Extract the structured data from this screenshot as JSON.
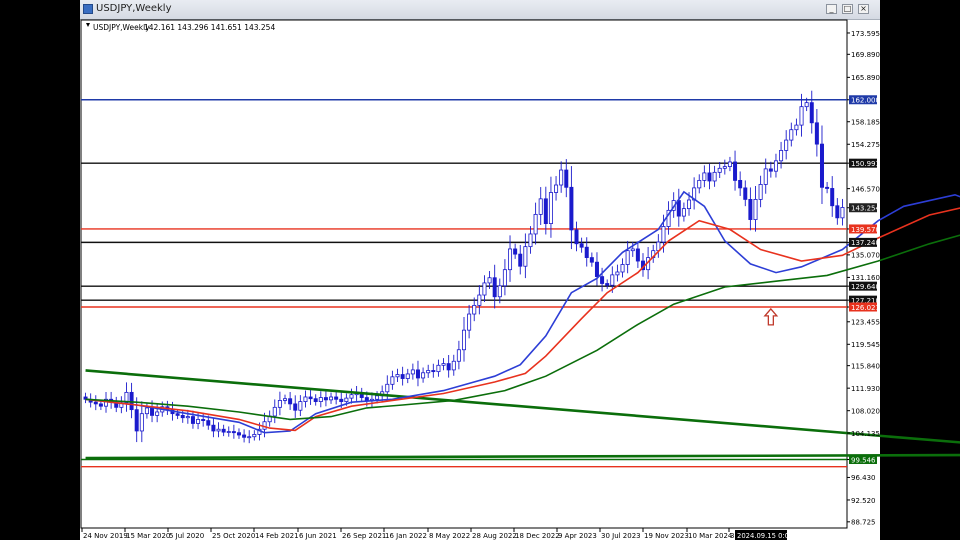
{
  "window": {
    "title": "USDJPY,Weekly",
    "buttons": [
      "_",
      "□",
      "×"
    ]
  },
  "chart_data": {
    "type": "candlestick",
    "symbol_label": "USDJPY,Weekly",
    "ohlc_label": "142.161 143.296 141.651 143.254",
    "y_ticks": [
      "173.595",
      "169.890",
      "165.890",
      "162.000",
      "158.185",
      "154.275",
      "150.991",
      "146.570",
      "143.254",
      "139.570",
      "137.240",
      "135.070",
      "131.160",
      "129.640",
      "127.210",
      "126.021",
      "123.455",
      "119.545",
      "115.840",
      "111.930",
      "108.020",
      "104.135",
      "99.546",
      "96.430",
      "92.520",
      "88.725"
    ],
    "x_ticks": [
      "24 Nov 2019",
      "15 Mar 2020",
      "5 Jul 2020",
      "25 Oct 2020",
      "14 Feb 2021",
      "6 Jun 2021",
      "26 Sep 2021",
      "16 Jan 2022",
      "8 May 2022",
      "28 Aug 2022",
      "18 Dec 2022",
      "9 Apr 2023",
      "30 Jul 2023",
      "19 Nov 2023",
      "10 Mar 2024",
      "3"
    ],
    "cursor_time": "2024.09.15 0:00",
    "y_range": [
      88.0,
      175.5
    ],
    "horizontal_levels": [
      {
        "value": 162.0,
        "label": "162.000",
        "color": "#1f3aa8"
      },
      {
        "value": 150.991,
        "label": "150.991",
        "color": "#111111"
      },
      {
        "value": 143.254,
        "label": "143.254",
        "color": "#222222"
      },
      {
        "value": 139.57,
        "label": "139.570",
        "color": "#e8321e"
      },
      {
        "value": 137.24,
        "label": "137.240",
        "color": "#111111"
      },
      {
        "value": 129.64,
        "label": "129.640",
        "color": "#111111"
      },
      {
        "value": 127.21,
        "label": "127.210",
        "color": "#111111"
      },
      {
        "value": 126.021,
        "label": "126.021",
        "color": "#e8321e"
      },
      {
        "value": 99.546,
        "label": "99.546",
        "color": "#0b6e0b"
      },
      {
        "value": 98.3,
        "label": "",
        "color": "#e8321e"
      }
    ],
    "series": [
      {
        "color": "#2d3ed6",
        "points": [
          [
            0,
            110.0
          ],
          [
            10,
            109.0
          ],
          [
            20,
            107.5
          ],
          [
            30,
            106.0
          ],
          [
            35,
            104.2
          ],
          [
            40,
            104.5
          ],
          [
            45,
            107.5
          ],
          [
            52,
            109.5
          ],
          [
            60,
            110.0
          ],
          [
            70,
            111.5
          ],
          [
            80,
            114.0
          ],
          [
            85,
            116.0
          ],
          [
            90,
            121.0
          ],
          [
            95,
            128.5
          ],
          [
            100,
            131.0
          ],
          [
            105,
            135.5
          ],
          [
            112,
            139.5
          ],
          [
            117,
            146.0
          ],
          [
            121,
            143.5
          ],
          [
            125,
            137.5
          ],
          [
            130,
            133.5
          ],
          [
            135,
            132.0
          ],
          [
            140,
            133.0
          ],
          [
            148,
            136.0
          ],
          [
            155,
            141.0
          ],
          [
            160,
            143.5
          ],
          [
            170,
            145.5
          ],
          [
            176,
            143.5
          ],
          [
            180,
            145.5
          ],
          [
            185,
            147.0
          ],
          [
            190,
            147.5
          ],
          [
            195,
            150.0
          ],
          [
            200,
            150.5
          ],
          [
            205,
            152.5
          ],
          [
            210,
            156.5
          ],
          [
            214,
            157.5
          ],
          [
            220,
            153.0
          ],
          [
            226,
            146.5
          ],
          [
            229,
            145.0
          ]
        ]
      },
      {
        "color": "#e8321e",
        "points": [
          [
            0,
            110.0
          ],
          [
            10,
            109.0
          ],
          [
            20,
            108.0
          ],
          [
            30,
            106.5
          ],
          [
            36,
            105.0
          ],
          [
            41,
            104.6
          ],
          [
            45,
            107.0
          ],
          [
            52,
            108.8
          ],
          [
            60,
            109.8
          ],
          [
            70,
            111.0
          ],
          [
            80,
            113.0
          ],
          [
            86,
            114.5
          ],
          [
            90,
            117.5
          ],
          [
            97,
            124.0
          ],
          [
            102,
            128.5
          ],
          [
            108,
            132.0
          ],
          [
            114,
            137.5
          ],
          [
            120,
            141.0
          ],
          [
            126,
            139.5
          ],
          [
            132,
            136.0
          ],
          [
            140,
            134.0
          ],
          [
            148,
            135.0
          ],
          [
            155,
            138.0
          ],
          [
            165,
            142.0
          ],
          [
            175,
            144.0
          ],
          [
            185,
            145.5
          ],
          [
            195,
            148.0
          ],
          [
            205,
            150.5
          ],
          [
            210,
            152.5
          ],
          [
            215,
            155.0
          ],
          [
            220,
            153.5
          ],
          [
            229,
            148.5
          ]
        ]
      },
      {
        "color": "#0b6e0b",
        "points": [
          [
            0,
            110.0
          ],
          [
            10,
            109.5
          ],
          [
            20,
            108.8
          ],
          [
            30,
            107.8
          ],
          [
            40,
            106.5
          ],
          [
            48,
            107.0
          ],
          [
            55,
            108.5
          ],
          [
            62,
            109.0
          ],
          [
            72,
            109.8
          ],
          [
            82,
            111.5
          ],
          [
            90,
            114.0
          ],
          [
            100,
            118.5
          ],
          [
            108,
            123.0
          ],
          [
            115,
            126.5
          ],
          [
            125,
            129.5
          ],
          [
            135,
            130.5
          ],
          [
            145,
            131.5
          ],
          [
            155,
            134.0
          ],
          [
            165,
            137.0
          ],
          [
            175,
            139.5
          ],
          [
            185,
            141.0
          ],
          [
            195,
            143.0
          ],
          [
            205,
            144.5
          ],
          [
            212,
            146.5
          ],
          [
            216,
            147.3
          ],
          [
            220,
            147.0
          ],
          [
            226,
            145.8
          ],
          [
            229,
            145.2
          ]
        ]
      }
    ],
    "trendlines": [
      {
        "color": "#0b6e0b",
        "from": [
          0,
          115.0
        ],
        "to": [
          200,
          100.4
        ]
      },
      {
        "color": "#0b6e0b",
        "from": [
          0,
          99.8
        ],
        "to": [
          200,
          100.4
        ]
      }
    ],
    "annotations": [
      {
        "kind": "arrow-up",
        "x": 134,
        "value": 124.3,
        "color": "#c0392b"
      },
      {
        "kind": "circle",
        "x": 220,
        "value": 151.8,
        "color": "#f2e52a"
      },
      {
        "kind": "vline",
        "x": 219,
        "color": "#111111"
      }
    ],
    "closes": [
      110,
      109.5,
      109.2,
      108.8,
      110,
      109.5,
      108.6,
      109.4,
      111.2,
      108.2,
      104.5,
      107.5,
      108.5,
      107.2,
      107.8,
      108.7,
      108.2,
      107.5,
      107.2,
      106.8,
      107.0,
      105.8,
      106.5,
      106.3,
      105.5,
      104.5,
      104.8,
      104.3,
      104.4,
      104.2,
      103.8,
      103.4,
      103.5,
      103.9,
      104.8,
      106.1,
      107.1,
      108.6,
      109.8,
      110.1,
      109.2,
      108.1,
      109.6,
      110.4,
      110.1,
      109.6,
      110.3,
      109.9,
      110.4,
      110.0,
      109.6,
      110.2,
      110.8,
      111.1,
      110.3,
      109.7,
      110.0,
      110.6,
      111.3,
      112.6,
      113.9,
      114.3,
      113.6,
      114.4,
      115.1,
      113.7,
      114.6,
      115.0,
      114.8,
      115.9,
      116.2,
      115.1,
      116.6,
      118.6,
      122.0,
      124.8,
      126.3,
      128.1,
      130.2,
      131.1,
      127.8,
      129.7,
      132.5,
      136.1,
      135.2,
      133.1,
      136.5,
      138.7,
      142.1,
      144.8,
      140.5,
      145.9,
      147.2,
      149.8,
      146.8,
      139.4,
      137.0,
      136.4,
      134.6,
      133.8,
      131.3,
      130.1,
      129.8,
      131.6,
      132.1,
      133.4,
      135.8,
      136.1,
      134.0,
      132.5,
      134.6,
      135.8,
      137.3,
      140.0,
      142.8,
      144.5,
      141.8,
      143.1,
      144.6,
      146.7,
      148.0,
      149.3,
      147.9,
      149.4,
      150.1,
      150.4,
      151.2,
      148.0,
      146.7,
      144.7,
      141.2,
      144.7,
      147.3,
      150.0,
      149.6,
      151.4,
      153.2,
      155.0,
      156.8,
      157.6,
      160.8,
      161.5,
      158.0,
      154.3,
      146.8,
      146.6,
      143.6,
      141.5,
      143.3
    ]
  }
}
